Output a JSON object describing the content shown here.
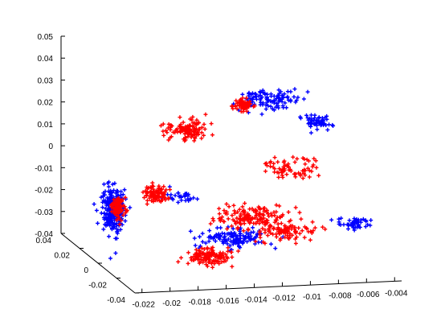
{
  "chart_data": {
    "type": "scatter",
    "title": "",
    "xlabel": "",
    "ylabel": "",
    "zlabel": "",
    "grid": false,
    "legend": false,
    "x_ticks": [
      "-0.022",
      "-0.02",
      "-0.018",
      "-0.016",
      "-0.014",
      "-0.012",
      "-0.01",
      "-0.008",
      "-0.006",
      "-0.004"
    ],
    "y_ticks": [
      "-0.04",
      "-0.02",
      "0",
      "0.02",
      "0.04"
    ],
    "z_ticks": [
      "-0.04",
      "-0.03",
      "-0.02",
      "-0.01",
      "0",
      "0.01",
      "0.02",
      "0.03",
      "0.04",
      "0.05"
    ],
    "xlim": [
      -0.0225,
      -0.0035
    ],
    "ylim": [
      -0.04,
      0.04
    ],
    "zlim": [
      -0.04,
      0.05
    ],
    "colors": {
      "blue": "#0000ff",
      "red": "#ff0000"
    },
    "series": [
      {
        "color": "#0000ff",
        "clusters": [
          {
            "x": -0.0212,
            "y": 0.003,
            "z": -0.017,
            "n": 260,
            "sx": 0.0006,
            "sy": 0.006,
            "sz": 0.008
          },
          {
            "x": -0.0095,
            "y": 0.015,
            "z": 0.026,
            "n": 110,
            "sx": 0.0018,
            "sy": 0.006,
            "sz": 0.003
          },
          {
            "x": -0.0065,
            "y": 0.006,
            "z": 0.018,
            "n": 55,
            "sx": 0.0008,
            "sy": 0.004,
            "sz": 0.002
          },
          {
            "x": -0.0135,
            "y": -0.01,
            "z": -0.028,
            "n": 120,
            "sx": 0.002,
            "sy": 0.004,
            "sz": 0.003
          },
          {
            "x": -0.0055,
            "y": -0.02,
            "z": -0.02,
            "n": 50,
            "sx": 0.001,
            "sy": 0.004,
            "sz": 0.002
          },
          {
            "x": -0.0168,
            "y": -0.004,
            "z": -0.01,
            "n": 30,
            "sx": 0.001,
            "sy": 0.002,
            "sz": 0.002
          }
        ]
      },
      {
        "color": "#ff0000",
        "clusters": [
          {
            "x": -0.0208,
            "y": 0.004,
            "z": -0.016,
            "n": 90,
            "sx": 0.0004,
            "sy": 0.004,
            "sz": 0.004
          },
          {
            "x": -0.0182,
            "y": 0.002,
            "z": -0.01,
            "n": 90,
            "sx": 0.0007,
            "sy": 0.004,
            "sz": 0.003
          },
          {
            "x": -0.0148,
            "y": 0.02,
            "z": 0.012,
            "n": 120,
            "sx": 0.0012,
            "sy": 0.004,
            "sz": 0.003
          },
          {
            "x": -0.011,
            "y": 0.018,
            "z": 0.023,
            "n": 60,
            "sx": 0.0006,
            "sy": 0.004,
            "sz": 0.002
          },
          {
            "x": -0.012,
            "y": -0.006,
            "z": -0.02,
            "n": 160,
            "sx": 0.002,
            "sy": 0.006,
            "sz": 0.004
          },
          {
            "x": -0.0085,
            "y": 0.004,
            "z": -0.002,
            "n": 70,
            "sx": 0.0016,
            "sy": 0.006,
            "sz": 0.004
          },
          {
            "x": -0.016,
            "y": -0.02,
            "z": -0.032,
            "n": 120,
            "sx": 0.0015,
            "sy": 0.004,
            "sz": 0.003
          },
          {
            "x": -0.01,
            "y": -0.016,
            "z": -0.024,
            "n": 90,
            "sx": 0.002,
            "sy": 0.004,
            "sz": 0.003
          }
        ]
      }
    ]
  }
}
